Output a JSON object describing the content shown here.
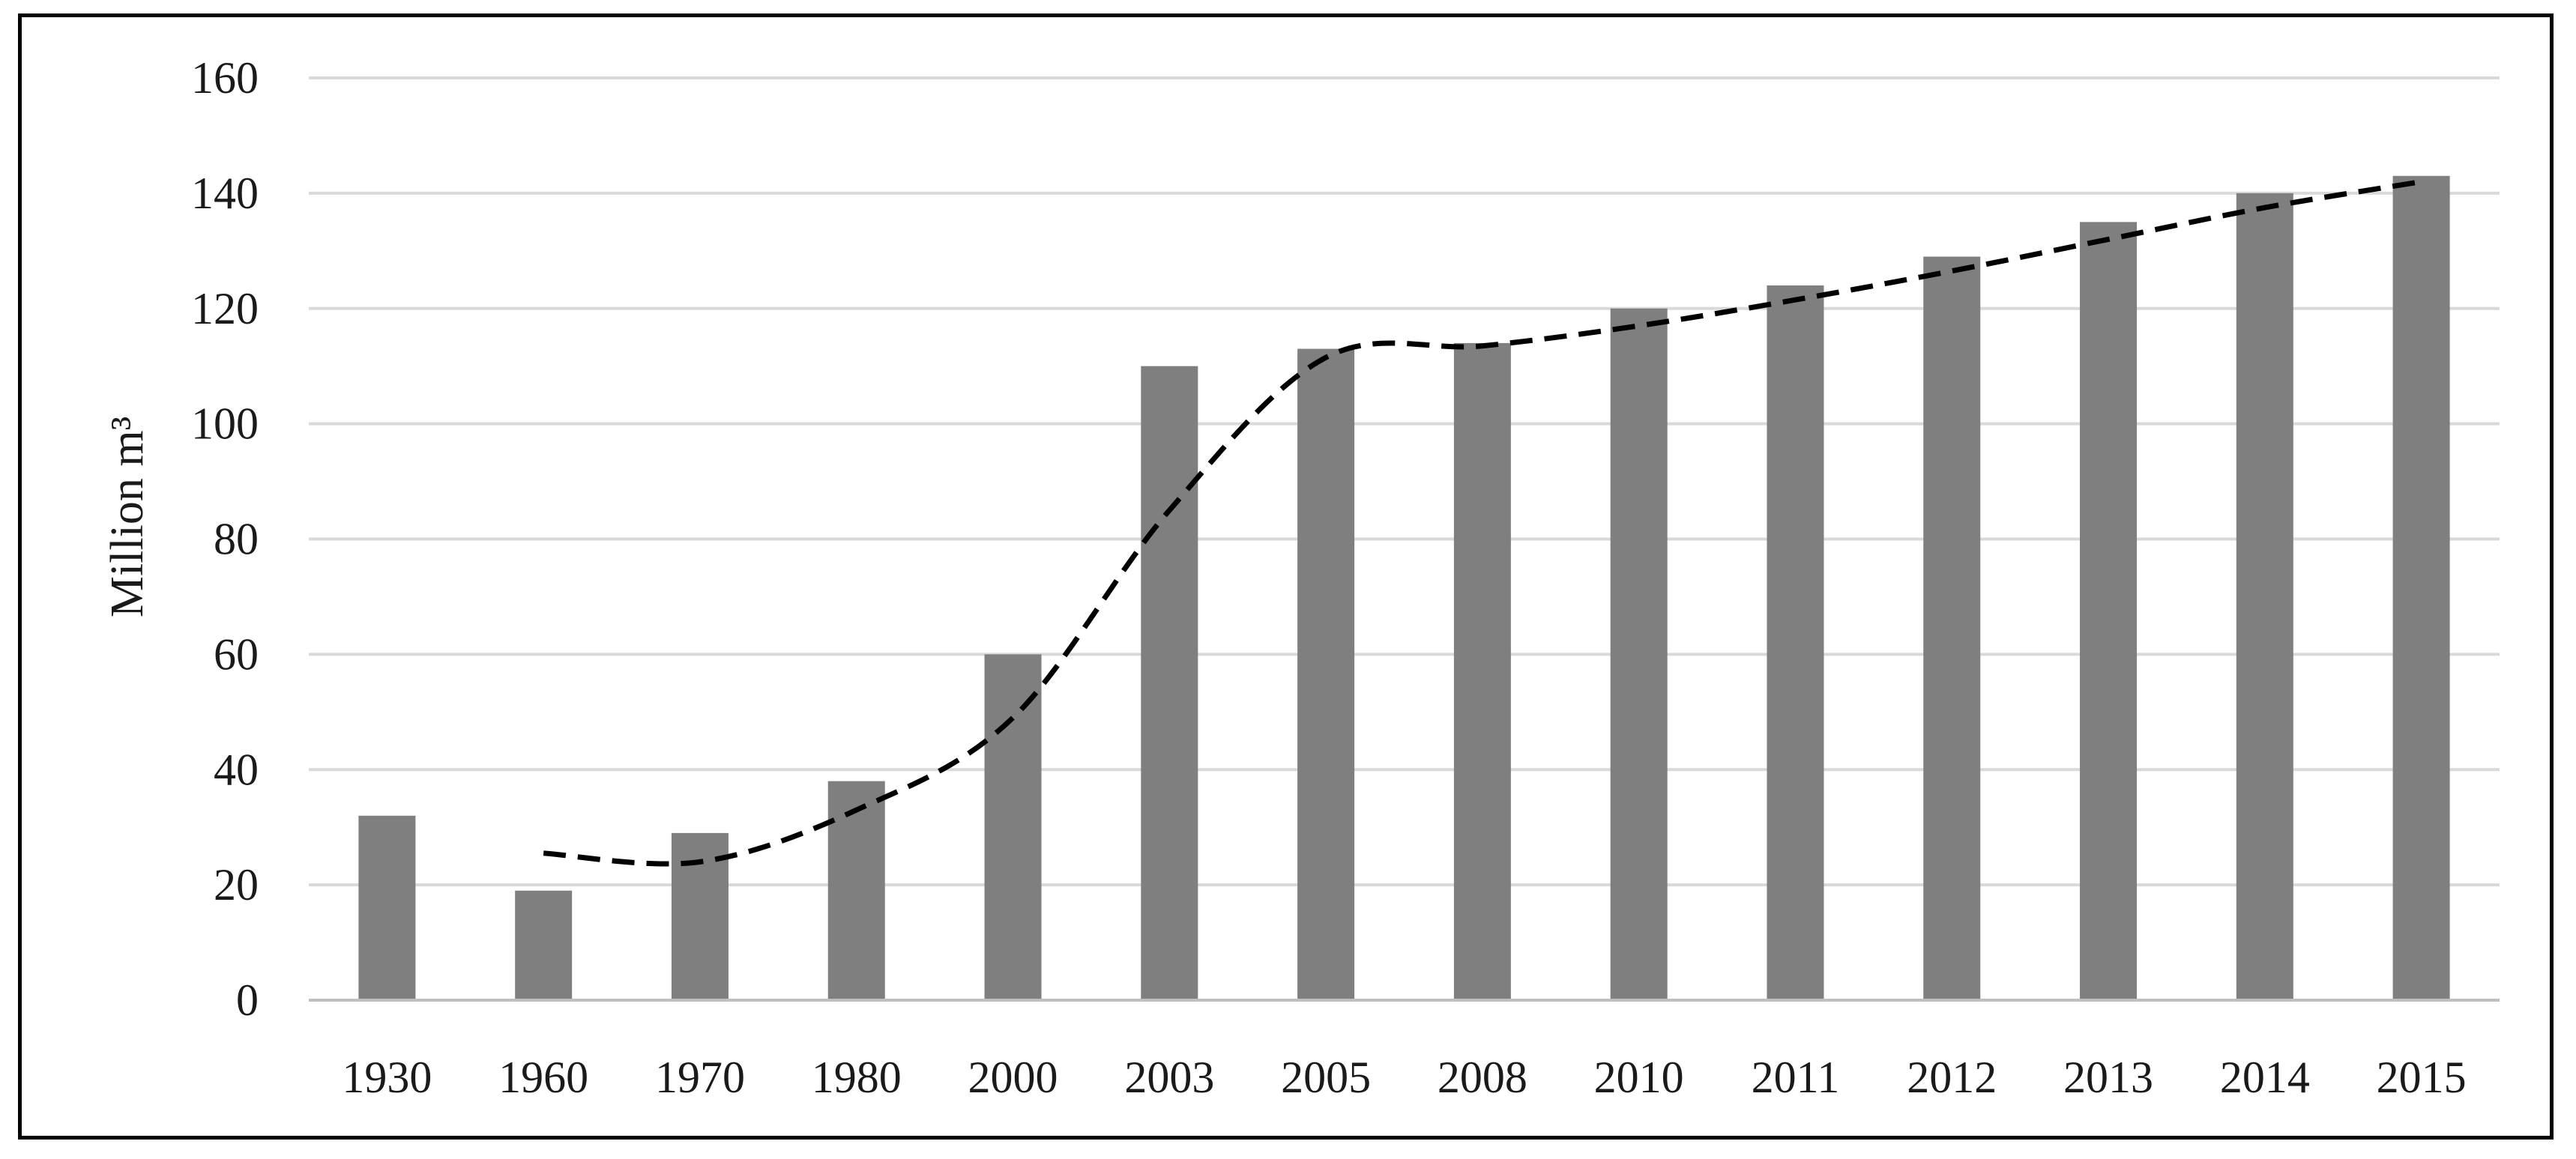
{
  "chart_data": {
    "type": "bar",
    "title": "",
    "xlabel": "",
    "ylabel": "Million m³",
    "ylim": [
      0,
      160
    ],
    "yticks": [
      0,
      20,
      40,
      60,
      80,
      100,
      120,
      140,
      160
    ],
    "grid": true,
    "categories": [
      "1930",
      "1960",
      "1970",
      "1980",
      "2000",
      "2003",
      "2005",
      "2008",
      "2010",
      "2011",
      "2012",
      "2013",
      "2014",
      "2015"
    ],
    "series": [
      {
        "type": "bar",
        "values": [
          32,
          19,
          29,
          38,
          60,
          110,
          113,
          114,
          120,
          124,
          129,
          135,
          140,
          143
        ]
      },
      {
        "type": "line",
        "style": "dashed",
        "values": [
          null,
          25.5,
          24,
          33,
          49,
          85,
          111.5,
          113.5,
          117,
          121.5,
          126.5,
          132,
          137.5,
          142
        ]
      }
    ],
    "colors": {
      "bar": "#7f7f7f",
      "trend": "#000000",
      "grid": "#d9d9d9",
      "axis": "#bfbfbf"
    }
  }
}
